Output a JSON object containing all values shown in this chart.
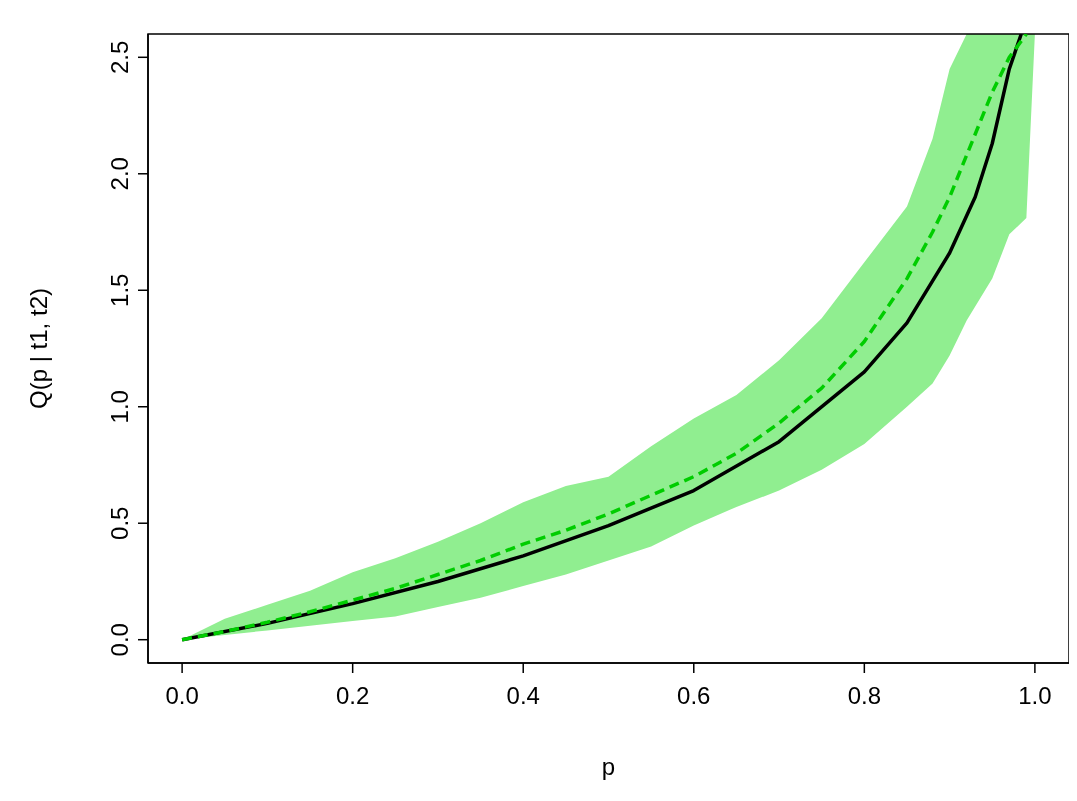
{
  "chart_data": {
    "type": "line",
    "xlabel": "p",
    "ylabel": "Q(p | t1, t2)",
    "xlim": [
      -0.04,
      1.04
    ],
    "ylim": [
      -0.1,
      2.6
    ],
    "xticks": [
      {
        "value": 0,
        "label": "0.0"
      },
      0.2,
      0.4,
      0.6,
      0.8,
      {
        "value": 1,
        "label": "1.0"
      }
    ],
    "yticks": [
      {
        "value": 0,
        "label": "0.0"
      },
      0.5,
      {
        "value": 1,
        "label": "1.0"
      },
      1.5,
      {
        "value": 2,
        "label": "2.0"
      },
      2.5
    ],
    "series": [
      {
        "color": "#00cd00",
        "line_style": "dashed",
        "x": [
          0,
          0.05,
          0.1,
          0.15,
          0.2,
          0.25,
          0.3,
          0.35,
          0.4,
          0.45,
          0.5,
          0.55,
          0.6,
          0.65,
          0.7,
          0.75,
          0.8,
          0.85,
          0.88,
          0.9,
          0.92,
          0.95,
          0.97,
          0.99,
          1.0
        ],
        "values": [
          0,
          0.035,
          0.075,
          0.12,
          0.17,
          0.22,
          0.28,
          0.34,
          0.41,
          0.47,
          0.54,
          0.62,
          0.7,
          0.8,
          0.93,
          1.08,
          1.28,
          1.55,
          1.75,
          1.9,
          2.08,
          2.35,
          2.5,
          2.6,
          null
        ],
        "upper": [
          0,
          0.09,
          0.15,
          0.21,
          0.29,
          0.35,
          0.42,
          0.5,
          0.59,
          0.66,
          0.7,
          0.83,
          0.95,
          1.05,
          1.2,
          1.38,
          1.62,
          1.86,
          2.15,
          2.45,
          2.6,
          2.6,
          2.6,
          2.6,
          2.6
        ],
        "lower": [
          0,
          0.02,
          0.04,
          0.06,
          0.08,
          0.1,
          0.14,
          0.18,
          0.23,
          0.28,
          0.34,
          0.4,
          0.49,
          0.57,
          0.64,
          0.73,
          0.84,
          1.0,
          1.1,
          1.22,
          1.37,
          1.55,
          1.74,
          1.81,
          2.6
        ]
      },
      {
        "color": "#000000",
        "line_style": "solid",
        "x": [
          0,
          0.1,
          0.2,
          0.3,
          0.4,
          0.5,
          0.6,
          0.7,
          0.8,
          0.85,
          0.9,
          0.93,
          0.95,
          0.97,
          0.984
        ],
        "values": [
          0,
          0.07,
          0.155,
          0.25,
          0.36,
          0.49,
          0.64,
          0.85,
          1.15,
          1.36,
          1.66,
          1.9,
          2.13,
          2.45,
          2.6
        ]
      }
    ]
  }
}
